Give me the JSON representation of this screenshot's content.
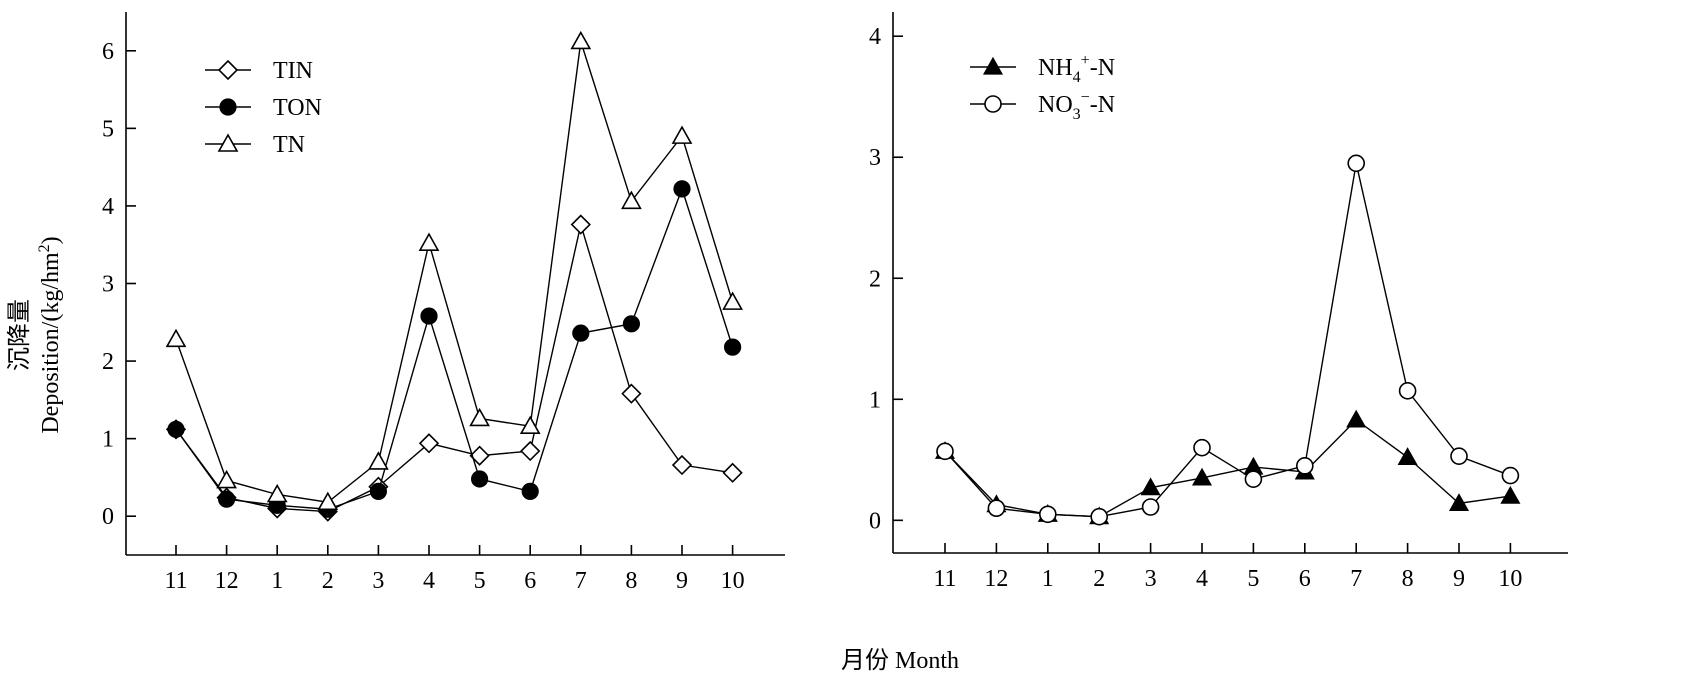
{
  "figure": {
    "xlabel": "月份 Month",
    "ylabel_cn": "沉降量",
    "ylabel_en": "Deposition/(kg/hm",
    "ylabel_sup": "2",
    "ylabel_close": ")"
  },
  "chart_data": [
    {
      "type": "line",
      "categories": [
        "11",
        "12",
        "1",
        "2",
        "3",
        "4",
        "5",
        "6",
        "7",
        "8",
        "9",
        "10"
      ],
      "ylim": [
        -0.5,
        6.5
      ],
      "yticks": [
        0,
        1,
        2,
        3,
        4,
        5,
        6
      ],
      "grid": false,
      "legend_position": "top-left",
      "series": [
        {
          "name": "TIN",
          "marker": "diamond-open",
          "values": [
            1.12,
            0.24,
            0.1,
            0.06,
            0.38,
            0.94,
            0.78,
            0.84,
            3.76,
            1.58,
            0.66,
            0.56
          ]
        },
        {
          "name": "TON",
          "marker": "circle-filled",
          "values": [
            1.12,
            0.22,
            0.14,
            0.09,
            0.32,
            2.58,
            0.48,
            0.32,
            2.36,
            2.48,
            4.22,
            2.18
          ]
        },
        {
          "name": "TN",
          "marker": "triangle-open",
          "values": [
            2.28,
            0.46,
            0.28,
            0.18,
            0.7,
            3.52,
            1.26,
            1.16,
            6.12,
            4.06,
            4.9,
            2.76
          ]
        }
      ]
    },
    {
      "type": "line",
      "categories": [
        "11",
        "12",
        "1",
        "2",
        "3",
        "4",
        "5",
        "6",
        "7",
        "8",
        "9",
        "10"
      ],
      "ylim": [
        -0.27,
        4.2
      ],
      "yticks": [
        0,
        1,
        2,
        3,
        4
      ],
      "grid": false,
      "legend_position": "top-left",
      "series": [
        {
          "name": "NH4+-N",
          "label_main": "NH",
          "label_sub": "4",
          "label_sup": "+",
          "label_tail": "-N",
          "marker": "triangle-filled",
          "values": [
            0.57,
            0.13,
            0.05,
            0.03,
            0.27,
            0.35,
            0.44,
            0.4,
            0.83,
            0.52,
            0.14,
            0.2
          ]
        },
        {
          "name": "NO3--N",
          "label_main": "NO",
          "label_sub": "3",
          "label_sup": "−",
          "label_tail": "-N",
          "marker": "circle-open",
          "values": [
            0.57,
            0.1,
            0.05,
            0.03,
            0.11,
            0.6,
            0.34,
            0.45,
            2.95,
            1.07,
            0.53,
            0.37
          ]
        }
      ]
    }
  ]
}
